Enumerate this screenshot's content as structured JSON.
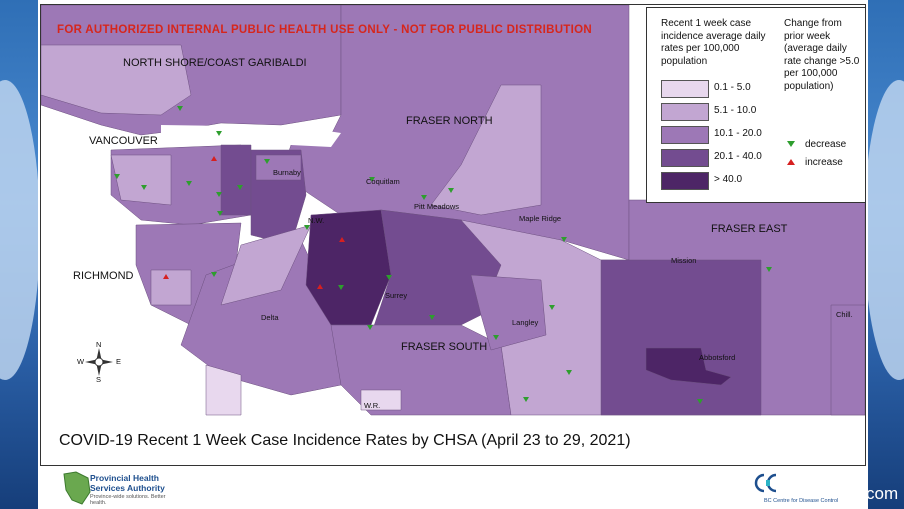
{
  "warning": "FOR AUTHORIZED INTERNAL PUBLIC HEALTH USE ONLY - NOT FOR PUBLIC DISTRIBUTION",
  "caption": "COVID-19 Recent 1 Week Case Incidence Rates by CHSA (April 23 to 29, 2021)",
  "regions": {
    "north_shore": "NORTH SHORE/COAST GARIBALDI",
    "vancouver": "VANCOUVER",
    "richmond": "RICHMOND",
    "fraser_north": "FRASER NORTH",
    "fraser_east": "FRASER EAST",
    "fraser_south": "FRASER SOUTH"
  },
  "cities": {
    "burnaby": "Burnaby",
    "coquitlam": "Coquitlam",
    "pitt_meadows": "Pitt Meadows",
    "maple_ridge": "Maple Ridge",
    "nw": "N.W.",
    "surrey": "Surrey",
    "delta": "Delta",
    "langley": "Langley",
    "wr": "W.R.",
    "mission": "Mission",
    "abbotsford": "Abbotsford",
    "chill": "Chill."
  },
  "legend": {
    "title": "Recent 1 week case incidence average daily rates per 100,000 population",
    "bins": [
      {
        "label": "0.1 - 5.0",
        "color": "#e8d8ee"
      },
      {
        "label": "5.1 - 10.0",
        "color": "#c2a6d2"
      },
      {
        "label": "10.1 - 20.0",
        "color": "#9d78b6"
      },
      {
        "label": "20.1 - 40.0",
        "color": "#734c90"
      },
      {
        "label": "> 40.0",
        "color": "#4d2566"
      }
    ],
    "change_title": "Change from prior week (average daily rate change >5.0 per 100,000 population)",
    "decrease": "decrease",
    "increase": "increase",
    "decrease_color": "#2e9e2e",
    "increase_color": "#d62020"
  },
  "compass": {
    "n": "N",
    "s": "S",
    "e": "E",
    "w": "W"
  },
  "footer": {
    "org": "Provincial Health Services Authority",
    "tagline": "Province-wide solutions. Better health.",
    "bccdc": "BC Centre for Disease Control",
    "com": "com"
  }
}
